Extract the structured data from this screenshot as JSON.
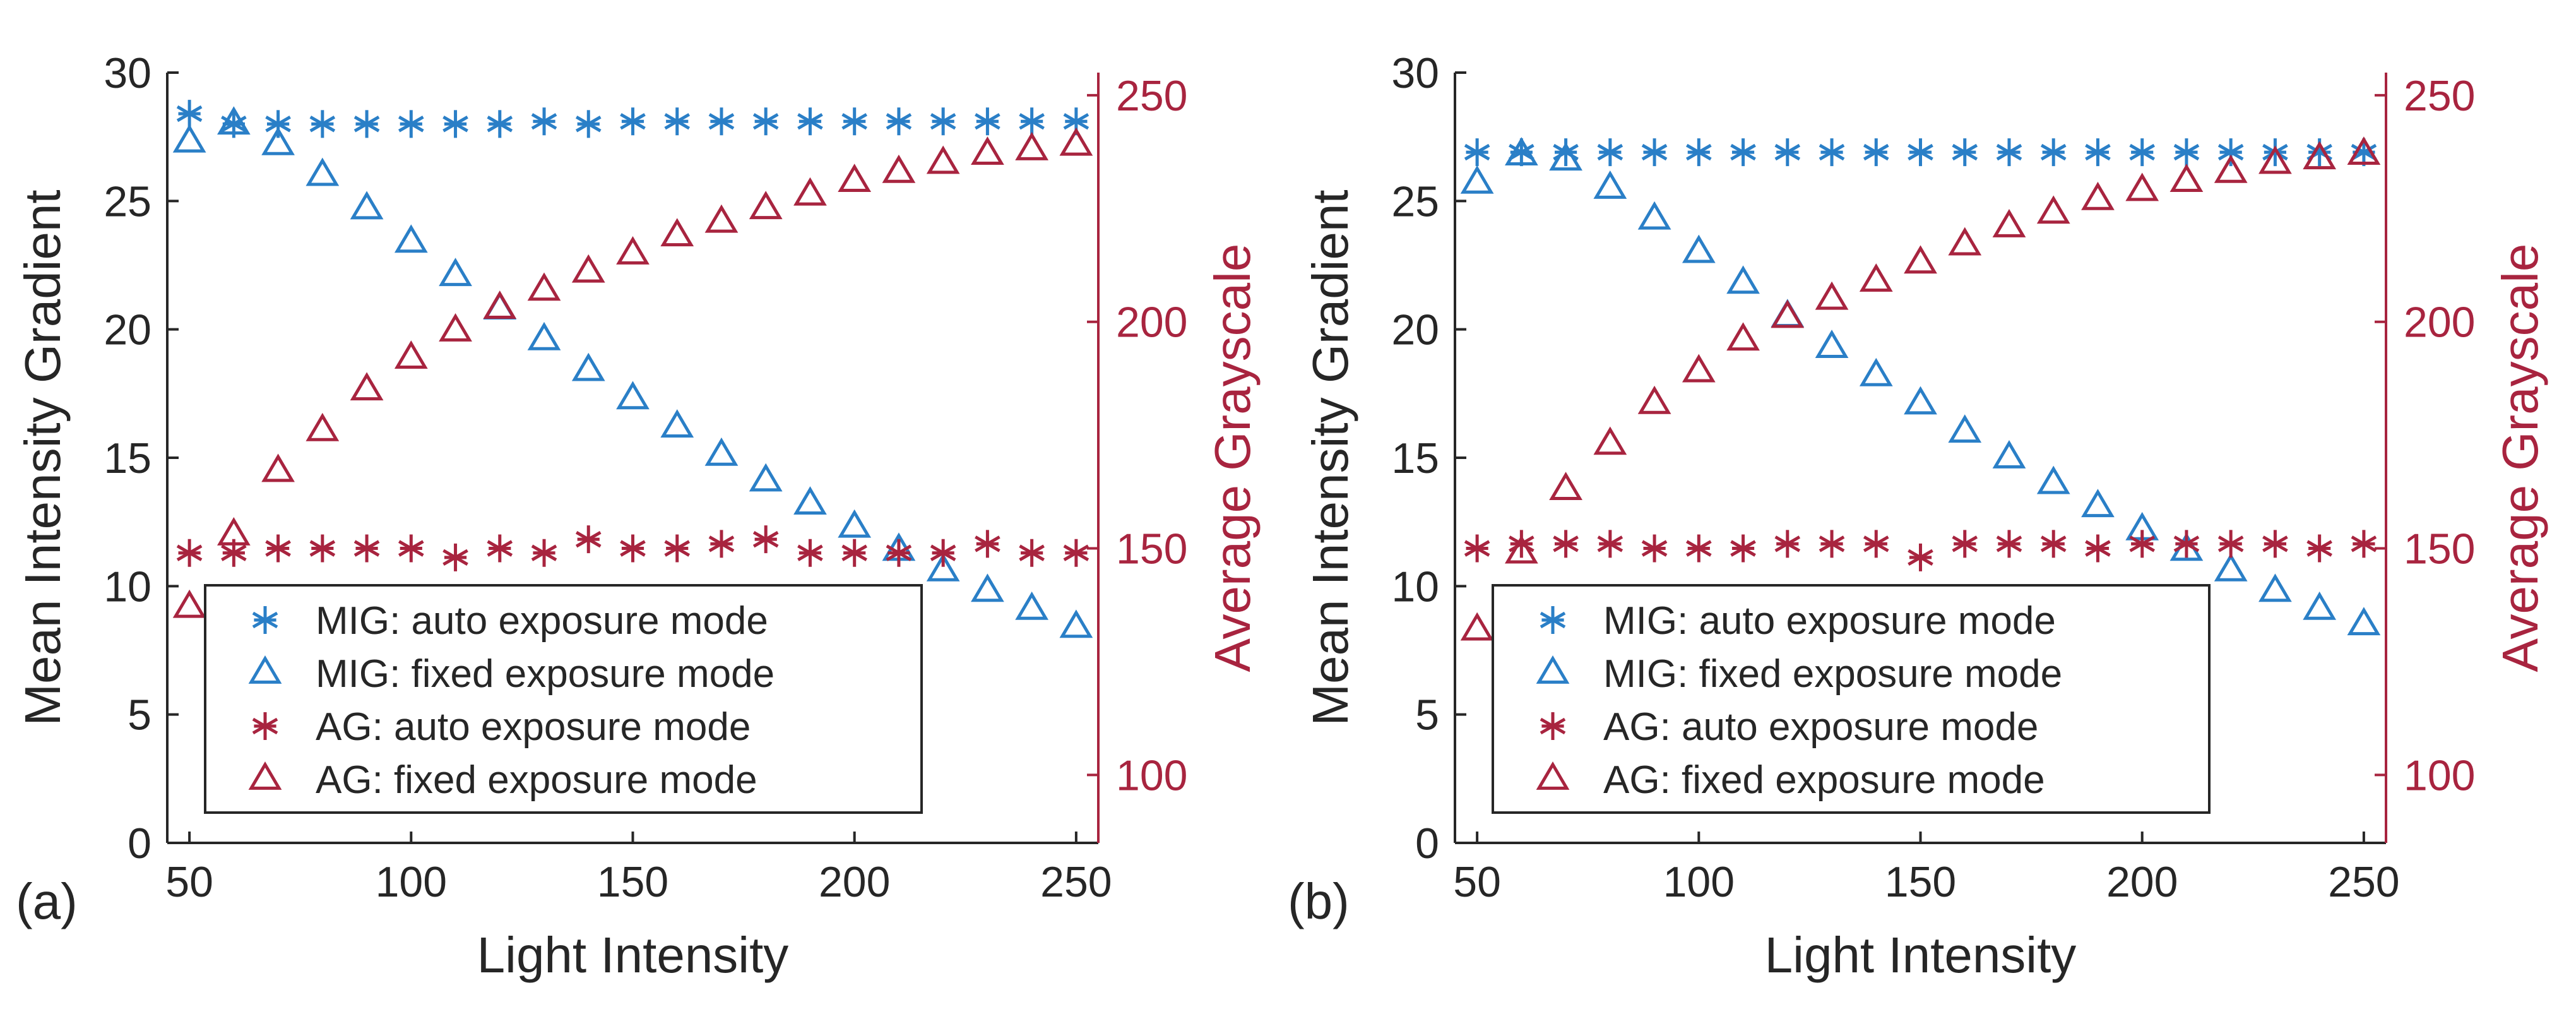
{
  "figure": {
    "colors": {
      "mig": "#2a7fc7",
      "ag": "#a8243f",
      "axis": "#262626",
      "legend_border": "#262626"
    },
    "panel_labels": [
      "(a)",
      "(b)"
    ]
  },
  "chart_data": [
    {
      "type": "scatter",
      "panel_label": "(a)",
      "xlabel": "Light Intensity",
      "ylabel_left": "Mean Intensity Gradient",
      "ylabel_right": "Average Grayscale",
      "xlim": [
        45,
        255
      ],
      "ylim_left": [
        0,
        30
      ],
      "ylim_right": [
        85,
        255
      ],
      "xticks": [
        50,
        100,
        150,
        200,
        250
      ],
      "yticks_left": [
        0,
        5,
        10,
        15,
        20,
        25,
        30
      ],
      "yticks_right": [
        100,
        150,
        200,
        250
      ],
      "legend_position": "bottom-left",
      "x": [
        50,
        60,
        70,
        80,
        90,
        100,
        110,
        120,
        130,
        140,
        150,
        160,
        170,
        180,
        190,
        200,
        210,
        220,
        230,
        240,
        250
      ],
      "series": [
        {
          "name": "MIG: auto exposure mode",
          "axis": "left",
          "marker": "asterisk",
          "color": "#2a7fc7",
          "values": [
            28.4,
            28.0,
            28.0,
            28.0,
            28.0,
            28.0,
            28.0,
            28.0,
            28.1,
            28.0,
            28.1,
            28.1,
            28.1,
            28.1,
            28.1,
            28.1,
            28.1,
            28.1,
            28.1,
            28.1,
            28.1
          ]
        },
        {
          "name": "MIG: fixed exposure mode",
          "axis": "left",
          "marker": "triangle",
          "color": "#2a7fc7",
          "values": [
            27.3,
            28.0,
            27.2,
            26.0,
            24.7,
            23.4,
            22.1,
            20.8,
            19.6,
            18.4,
            17.3,
            16.2,
            15.1,
            14.1,
            13.2,
            12.3,
            11.4,
            10.6,
            9.8,
            9.1,
            8.4
          ]
        },
        {
          "name": "AG: auto exposure mode",
          "axis": "right",
          "marker": "asterisk",
          "color": "#a8243f",
          "values": [
            149,
            149,
            150,
            150,
            150,
            150,
            148,
            150,
            149,
            152,
            150,
            150,
            151,
            152,
            149,
            149,
            149,
            149,
            151,
            149,
            149
          ]
        },
        {
          "name": "AG: fixed exposure mode",
          "axis": "right",
          "marker": "triangle",
          "color": "#a8243f",
          "values": [
            137,
            153,
            167,
            176,
            185,
            192,
            198,
            203,
            207,
            211,
            215,
            219,
            222,
            225,
            228,
            231,
            233,
            235,
            237,
            238,
            239
          ]
        }
      ]
    },
    {
      "type": "scatter",
      "panel_label": "(b)",
      "xlabel": "Light Intensity",
      "ylabel_left": "Mean Intensity Gradient",
      "ylabel_right": "Average Grayscale",
      "xlim": [
        45,
        255
      ],
      "ylim_left": [
        0,
        30
      ],
      "ylim_right": [
        85,
        255
      ],
      "xticks": [
        50,
        100,
        150,
        200,
        250
      ],
      "yticks_left": [
        0,
        5,
        10,
        15,
        20,
        25,
        30
      ],
      "yticks_right": [
        100,
        150,
        200,
        250
      ],
      "legend_position": "bottom-left",
      "x": [
        50,
        60,
        70,
        80,
        90,
        100,
        110,
        120,
        130,
        140,
        150,
        160,
        170,
        180,
        190,
        200,
        210,
        220,
        230,
        240,
        250
      ],
      "series": [
        {
          "name": "MIG: auto exposure mode",
          "axis": "left",
          "marker": "asterisk",
          "color": "#2a7fc7",
          "values": [
            26.9,
            26.9,
            26.9,
            26.9,
            26.9,
            26.9,
            26.9,
            26.9,
            26.9,
            26.9,
            26.9,
            26.9,
            26.9,
            26.9,
            26.9,
            26.9,
            26.9,
            26.9,
            26.9,
            26.9,
            26.9
          ]
        },
        {
          "name": "MIG: fixed exposure mode",
          "axis": "left",
          "marker": "triangle",
          "color": "#2a7fc7",
          "values": [
            25.7,
            26.8,
            26.6,
            25.5,
            24.3,
            23.0,
            21.8,
            20.5,
            19.3,
            18.2,
            17.1,
            16.0,
            15.0,
            14.0,
            13.1,
            12.2,
            11.4,
            10.6,
            9.8,
            9.1,
            8.5
          ]
        },
        {
          "name": "AG: auto exposure mode",
          "axis": "right",
          "marker": "asterisk",
          "color": "#a8243f",
          "values": [
            150,
            151,
            151,
            151,
            150,
            150,
            150,
            151,
            151,
            151,
            148,
            151,
            151,
            151,
            150,
            151,
            151,
            151,
            151,
            150,
            151
          ]
        },
        {
          "name": "AG: fixed exposure mode",
          "axis": "right",
          "marker": "triangle",
          "color": "#a8243f",
          "values": [
            132,
            149,
            163,
            173,
            182,
            189,
            196,
            201,
            205,
            209,
            213,
            217,
            221,
            224,
            227,
            229,
            231,
            233,
            235,
            236,
            237
          ]
        }
      ]
    }
  ]
}
